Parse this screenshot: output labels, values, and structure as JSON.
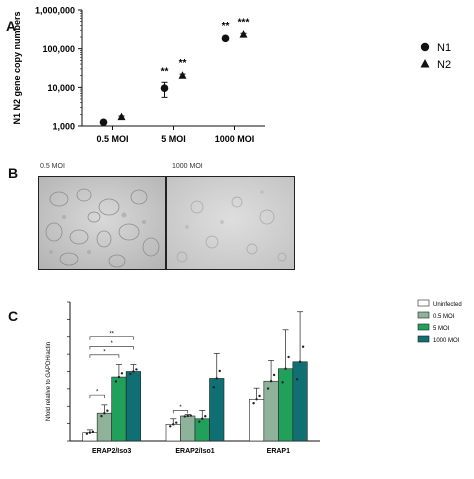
{
  "panel_labels": {
    "a": "A",
    "b": "B",
    "c": "C"
  },
  "panel_b": {
    "image_labels": [
      "0.5 MOI",
      "1000 MOI"
    ]
  },
  "chart_data": [
    {
      "type": "scatter",
      "panel": "A",
      "ylabel": "N1 N2 gene copy numbers",
      "yscale": "log",
      "ylim": [
        1000,
        1000000
      ],
      "yticks": [
        "1,000",
        "10,000",
        "100,000",
        "1,000,000"
      ],
      "categories": [
        "0.5 MOI",
        "5 MOI",
        "1000 MOI"
      ],
      "series": [
        {
          "name": "N1",
          "marker": "circle",
          "values": [
            1250,
            9500,
            185000
          ],
          "err": [
            80,
            4000,
            15000
          ]
        },
        {
          "name": "N2",
          "marker": "triangle",
          "values": [
            1700,
            20000,
            230000
          ],
          "err": [
            120,
            2000,
            20000
          ]
        }
      ],
      "significance": [
        {
          "category": "5 MOI",
          "series": "N1",
          "text": "**"
        },
        {
          "category": "5 MOI",
          "series": "N2",
          "text": "**"
        },
        {
          "category": "1000 MOI",
          "series": "N1",
          "text": "**"
        },
        {
          "category": "1000 MOI",
          "series": "N2",
          "text": "***"
        }
      ],
      "legend_position": "right"
    },
    {
      "type": "bar",
      "panel": "C",
      "ylabel": "Nfold relative to GAPDH/actin",
      "categories": [
        "ERAP2/Iso3",
        "ERAP2/Iso1",
        "ERAP1"
      ],
      "series": [
        {
          "name": "Uninfected",
          "color": "#ffffff",
          "values": [
            0.06,
            0.12,
            0.3
          ],
          "err": [
            0.02,
            0.04,
            0.08
          ]
        },
        {
          "name": "0.5 MOI",
          "color": "#8fb39a",
          "values": [
            0.2,
            0.18,
            0.43
          ],
          "err": [
            0.06,
            0.01,
            0.15
          ]
        },
        {
          "name": "5 MOI",
          "color": "#21a05c",
          "values": [
            0.46,
            0.16,
            0.52
          ],
          "err": [
            0.09,
            0.06,
            0.28
          ]
        },
        {
          "name": "1000 MOI",
          "color": "#0f6f72",
          "values": [
            0.5,
            0.45,
            0.57
          ],
          "err": [
            0.05,
            0.18,
            0.36
          ]
        }
      ],
      "significance": [
        {
          "category": "ERAP2/Iso3",
          "text": "*"
        },
        {
          "category": "ERAP2/Iso3",
          "text": "*"
        },
        {
          "category": "ERAP2/Iso3",
          "text": "*"
        },
        {
          "category": "ERAP2/Iso3",
          "text": "**"
        },
        {
          "category": "ERAP2/Iso1",
          "text": "*"
        }
      ],
      "legend_position": "top-right"
    }
  ]
}
